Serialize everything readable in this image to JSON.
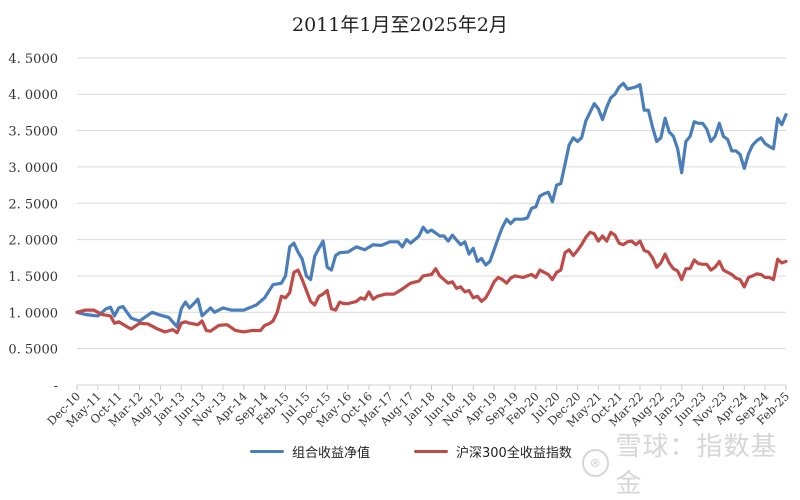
{
  "title": "2011年1月至2025年2月",
  "legend": [
    {
      "label": "组合收益净值",
      "color": "#4a7ebb"
    },
    {
      "label": "沪深300全收益指数",
      "color": "#be4b48"
    }
  ],
  "watermark": {
    "logo": "⊗",
    "text": "雪球：指数基金"
  },
  "chart_data": {
    "type": "line",
    "title": "2011年1月至2025年2月",
    "xlabel": "",
    "ylabel": "",
    "ylim": [
      0,
      4.5
    ],
    "yticks": [
      0,
      0.5,
      1.0,
      1.5,
      2.0,
      2.5,
      3.0,
      3.5,
      4.0,
      4.5
    ],
    "ytick_labels": [
      "-",
      "0.5000",
      "1.0000",
      "1.5000",
      "2.0000",
      "2.5000",
      "3.0000",
      "3.5000",
      "4.0000",
      "4.5000"
    ],
    "grid": true,
    "legend_position": "bottom",
    "x_start": "Dec-10",
    "x_end": "Feb-25",
    "months_total": 170,
    "xtick_interval_months": 5,
    "xtick_labels": [
      "Dec-10",
      "May-11",
      "Oct-11",
      "Mar-12",
      "Aug-12",
      "Jan-13",
      "Jun-13",
      "Nov-13",
      "Apr-14",
      "Sep-14",
      "Feb-15",
      "Jul-15",
      "Dec-15",
      "May-16",
      "Oct-16",
      "Mar-17",
      "Aug-17",
      "Jan-18",
      "Jun-18",
      "Nov-18",
      "Apr-19",
      "Sep-19",
      "Feb-20",
      "Jul-20",
      "Dec-20",
      "May-21",
      "Oct-21",
      "Mar-22",
      "Aug-22",
      "Jan-23",
      "Jun-23",
      "Nov-23",
      "Apr-24",
      "Sep-24",
      "Feb-25"
    ],
    "series": [
      {
        "name": "组合收益净值",
        "color": "#4a7ebb",
        "anchors": [
          [
            0,
            1.0
          ],
          [
            2,
            0.97
          ],
          [
            5,
            0.95
          ],
          [
            7,
            1.05
          ],
          [
            8,
            1.07
          ],
          [
            9,
            0.95
          ],
          [
            10,
            1.06
          ],
          [
            11,
            1.08
          ],
          [
            13,
            0.92
          ],
          [
            15,
            0.88
          ],
          [
            18,
            1.0
          ],
          [
            20,
            0.96
          ],
          [
            22,
            0.93
          ],
          [
            24,
            0.8
          ],
          [
            25,
            1.05
          ],
          [
            26,
            1.14
          ],
          [
            27,
            1.06
          ],
          [
            29,
            1.18
          ],
          [
            30,
            0.95
          ],
          [
            32,
            1.06
          ],
          [
            33,
            1.0
          ],
          [
            35,
            1.06
          ],
          [
            37,
            1.03
          ],
          [
            40,
            1.03
          ],
          [
            43,
            1.1
          ],
          [
            45,
            1.2
          ],
          [
            47,
            1.38
          ],
          [
            49,
            1.4
          ],
          [
            50,
            1.5
          ],
          [
            51,
            1.9
          ],
          [
            52,
            1.95
          ],
          [
            53,
            1.83
          ],
          [
            54,
            1.73
          ],
          [
            55,
            1.5
          ],
          [
            56,
            1.45
          ],
          [
            57,
            1.77
          ],
          [
            58,
            1.88
          ],
          [
            59,
            1.98
          ],
          [
            60,
            1.62
          ],
          [
            61,
            1.58
          ],
          [
            62,
            1.78
          ],
          [
            63,
            1.82
          ],
          [
            65,
            1.83
          ],
          [
            67,
            1.9
          ],
          [
            69,
            1.86
          ],
          [
            71,
            1.93
          ],
          [
            73,
            1.92
          ],
          [
            75,
            1.97
          ],
          [
            77,
            1.97
          ],
          [
            78,
            1.9
          ],
          [
            79,
            2.0
          ],
          [
            80,
            1.95
          ],
          [
            82,
            2.05
          ],
          [
            83,
            2.17
          ],
          [
            84,
            2.1
          ],
          [
            85,
            2.13
          ],
          [
            87,
            2.05
          ],
          [
            88,
            2.05
          ],
          [
            89,
            1.98
          ],
          [
            90,
            2.06
          ],
          [
            92,
            1.93
          ],
          [
            93,
            1.97
          ],
          [
            94,
            1.8
          ],
          [
            95,
            1.88
          ],
          [
            96,
            1.7
          ],
          [
            97,
            1.74
          ],
          [
            98,
            1.65
          ],
          [
            99,
            1.7
          ],
          [
            101,
            2.02
          ],
          [
            102,
            2.17
          ],
          [
            103,
            2.28
          ],
          [
            104,
            2.22
          ],
          [
            105,
            2.28
          ],
          [
            107,
            2.28
          ],
          [
            108,
            2.3
          ],
          [
            109,
            2.43
          ],
          [
            110,
            2.45
          ],
          [
            111,
            2.6
          ],
          [
            112,
            2.63
          ],
          [
            113,
            2.65
          ],
          [
            114,
            2.52
          ],
          [
            115,
            2.75
          ],
          [
            116,
            2.77
          ],
          [
            118,
            3.3
          ],
          [
            119,
            3.4
          ],
          [
            120,
            3.35
          ],
          [
            121,
            3.4
          ],
          [
            122,
            3.63
          ],
          [
            123,
            3.75
          ],
          [
            124,
            3.87
          ],
          [
            125,
            3.8
          ],
          [
            126,
            3.65
          ],
          [
            127,
            3.82
          ],
          [
            128,
            3.95
          ],
          [
            129,
            4.0
          ],
          [
            130,
            4.1
          ],
          [
            131,
            4.15
          ],
          [
            132,
            4.07
          ],
          [
            134,
            4.1
          ],
          [
            135,
            4.13
          ],
          [
            136,
            3.78
          ],
          [
            137,
            3.78
          ],
          [
            138,
            3.55
          ],
          [
            139,
            3.35
          ],
          [
            140,
            3.4
          ],
          [
            141,
            3.67
          ],
          [
            142,
            3.48
          ],
          [
            143,
            3.42
          ],
          [
            144,
            3.25
          ],
          [
            145,
            2.92
          ],
          [
            146,
            3.35
          ],
          [
            147,
            3.42
          ],
          [
            148,
            3.62
          ],
          [
            149,
            3.6
          ],
          [
            150,
            3.6
          ],
          [
            151,
            3.52
          ],
          [
            152,
            3.35
          ],
          [
            153,
            3.42
          ],
          [
            154,
            3.6
          ],
          [
            155,
            3.42
          ],
          [
            156,
            3.38
          ],
          [
            157,
            3.22
          ],
          [
            158,
            3.22
          ],
          [
            159,
            3.17
          ],
          [
            160,
            2.98
          ],
          [
            161,
            3.18
          ],
          [
            162,
            3.3
          ],
          [
            163,
            3.36
          ],
          [
            164,
            3.4
          ],
          [
            165,
            3.32
          ],
          [
            166,
            3.28
          ],
          [
            167,
            3.25
          ],
          [
            168,
            3.67
          ],
          [
            169,
            3.58
          ],
          [
            170,
            3.72
          ]
        ]
      },
      {
        "name": "沪深300全收益指数",
        "color": "#be4b48",
        "anchors": [
          [
            0,
            1.0
          ],
          [
            2,
            1.03
          ],
          [
            4,
            1.03
          ],
          [
            6,
            0.97
          ],
          [
            8,
            0.95
          ],
          [
            9,
            0.85
          ],
          [
            10,
            0.87
          ],
          [
            12,
            0.8
          ],
          [
            13,
            0.77
          ],
          [
            15,
            0.85
          ],
          [
            17,
            0.84
          ],
          [
            19,
            0.78
          ],
          [
            21,
            0.73
          ],
          [
            23,
            0.76
          ],
          [
            24,
            0.72
          ],
          [
            25,
            0.85
          ],
          [
            26,
            0.87
          ],
          [
            27,
            0.85
          ],
          [
            29,
            0.83
          ],
          [
            30,
            0.88
          ],
          [
            31,
            0.75
          ],
          [
            32,
            0.74
          ],
          [
            33,
            0.78
          ],
          [
            34,
            0.82
          ],
          [
            36,
            0.83
          ],
          [
            38,
            0.75
          ],
          [
            40,
            0.73
          ],
          [
            42,
            0.75
          ],
          [
            44,
            0.75
          ],
          [
            45,
            0.82
          ],
          [
            46,
            0.84
          ],
          [
            47,
            0.88
          ],
          [
            48,
            1.0
          ],
          [
            49,
            1.22
          ],
          [
            50,
            1.2
          ],
          [
            51,
            1.27
          ],
          [
            52,
            1.55
          ],
          [
            53,
            1.58
          ],
          [
            54,
            1.45
          ],
          [
            55,
            1.3
          ],
          [
            56,
            1.15
          ],
          [
            57,
            1.1
          ],
          [
            58,
            1.22
          ],
          [
            59,
            1.25
          ],
          [
            60,
            1.3
          ],
          [
            61,
            1.05
          ],
          [
            62,
            1.03
          ],
          [
            63,
            1.14
          ],
          [
            64,
            1.12
          ],
          [
            65,
            1.12
          ],
          [
            67,
            1.15
          ],
          [
            68,
            1.2
          ],
          [
            69,
            1.18
          ],
          [
            70,
            1.28
          ],
          [
            71,
            1.18
          ],
          [
            72,
            1.22
          ],
          [
            74,
            1.25
          ],
          [
            76,
            1.25
          ],
          [
            78,
            1.32
          ],
          [
            80,
            1.4
          ],
          [
            82,
            1.43
          ],
          [
            83,
            1.5
          ],
          [
            85,
            1.52
          ],
          [
            86,
            1.6
          ],
          [
            87,
            1.5
          ],
          [
            88,
            1.45
          ],
          [
            89,
            1.4
          ],
          [
            90,
            1.42
          ],
          [
            91,
            1.33
          ],
          [
            92,
            1.35
          ],
          [
            93,
            1.28
          ],
          [
            94,
            1.3
          ],
          [
            95,
            1.2
          ],
          [
            96,
            1.22
          ],
          [
            97,
            1.15
          ],
          [
            98,
            1.2
          ],
          [
            99,
            1.3
          ],
          [
            100,
            1.42
          ],
          [
            101,
            1.48
          ],
          [
            102,
            1.45
          ],
          [
            103,
            1.4
          ],
          [
            104,
            1.47
          ],
          [
            105,
            1.5
          ],
          [
            107,
            1.48
          ],
          [
            108,
            1.5
          ],
          [
            109,
            1.52
          ],
          [
            110,
            1.48
          ],
          [
            111,
            1.58
          ],
          [
            112,
            1.55
          ],
          [
            113,
            1.52
          ],
          [
            114,
            1.45
          ],
          [
            115,
            1.55
          ],
          [
            116,
            1.58
          ],
          [
            117,
            1.82
          ],
          [
            118,
            1.86
          ],
          [
            119,
            1.78
          ],
          [
            120,
            1.85
          ],
          [
            121,
            1.93
          ],
          [
            122,
            2.03
          ],
          [
            123,
            2.1
          ],
          [
            124,
            2.08
          ],
          [
            125,
            1.98
          ],
          [
            126,
            2.05
          ],
          [
            127,
            1.98
          ],
          [
            128,
            2.1
          ],
          [
            129,
            2.06
          ],
          [
            130,
            1.95
          ],
          [
            131,
            1.93
          ],
          [
            132,
            1.97
          ],
          [
            133,
            1.98
          ],
          [
            134,
            1.93
          ],
          [
            135,
            1.98
          ],
          [
            136,
            1.85
          ],
          [
            137,
            1.83
          ],
          [
            138,
            1.75
          ],
          [
            139,
            1.62
          ],
          [
            140,
            1.68
          ],
          [
            141,
            1.8
          ],
          [
            142,
            1.68
          ],
          [
            143,
            1.6
          ],
          [
            144,
            1.57
          ],
          [
            145,
            1.45
          ],
          [
            146,
            1.6
          ],
          [
            147,
            1.6
          ],
          [
            148,
            1.72
          ],
          [
            149,
            1.67
          ],
          [
            150,
            1.66
          ],
          [
            151,
            1.66
          ],
          [
            152,
            1.58
          ],
          [
            153,
            1.62
          ],
          [
            154,
            1.7
          ],
          [
            155,
            1.58
          ],
          [
            156,
            1.55
          ],
          [
            157,
            1.52
          ],
          [
            158,
            1.47
          ],
          [
            159,
            1.45
          ],
          [
            160,
            1.35
          ],
          [
            161,
            1.48
          ],
          [
            162,
            1.5
          ],
          [
            163,
            1.53
          ],
          [
            164,
            1.52
          ],
          [
            165,
            1.48
          ],
          [
            166,
            1.48
          ],
          [
            167,
            1.45
          ],
          [
            168,
            1.73
          ],
          [
            169,
            1.68
          ],
          [
            170,
            1.7
          ]
        ]
      }
    ]
  }
}
